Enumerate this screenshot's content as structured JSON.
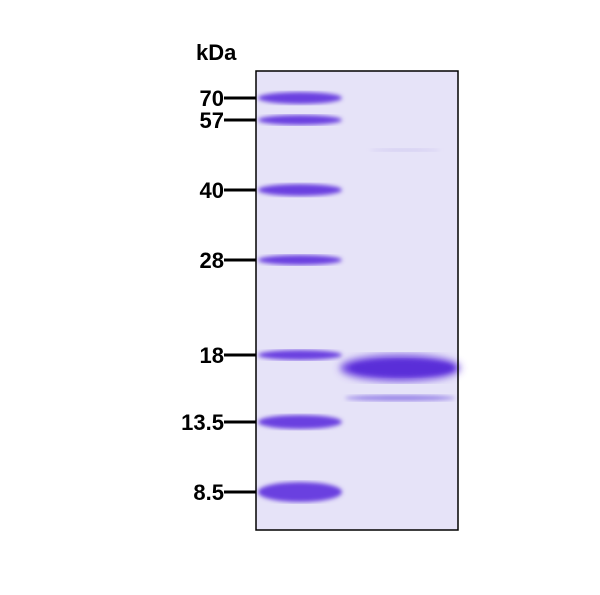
{
  "unit_label": "kDa",
  "markers": [
    {
      "label": "70",
      "kda": 70
    },
    {
      "label": "57",
      "kda": 57
    },
    {
      "label": "40",
      "kda": 40
    },
    {
      "label": "28",
      "kda": 28
    },
    {
      "label": "18",
      "kda": 18
    },
    {
      "label": "13.5",
      "kda": 13.5
    },
    {
      "label": "8.5",
      "kda": 8.5
    }
  ],
  "colors": {
    "gel": "#e6e3f8",
    "band": "#6a3fe0",
    "border": "#000000"
  }
}
